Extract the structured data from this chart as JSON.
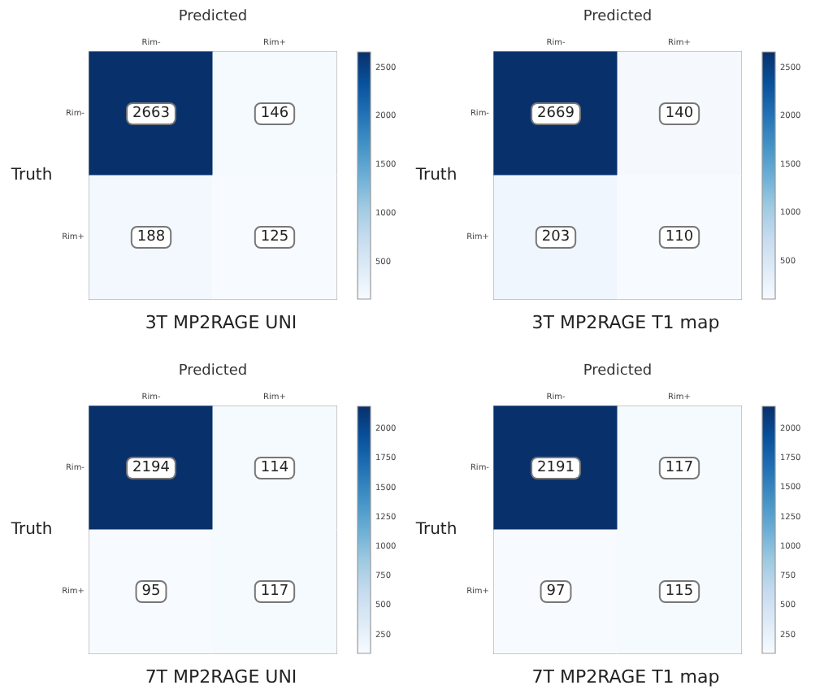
{
  "chart_data": [
    {
      "type": "heatmap",
      "title": "3T MP2RAGE UNI",
      "xlabel": "Predicted",
      "ylabel": "Truth",
      "categories": [
        "Rim-",
        "Rim+"
      ],
      "y_categories": [
        "Rim-",
        "Rim+"
      ],
      "cells": [
        [
          2663,
          146
        ],
        [
          188,
          125
        ]
      ],
      "data_labels": true,
      "clim": [
        125,
        2663
      ],
      "cticks": [
        500,
        1000,
        1500,
        2000,
        2500
      ]
    },
    {
      "type": "heatmap",
      "title": "3T MP2RAGE T1 map",
      "xlabel": "Predicted",
      "ylabel": "Truth",
      "categories": [
        "Rim-",
        "Rim+"
      ],
      "y_categories": [
        "Rim-",
        "Rim+"
      ],
      "cells": [
        [
          2669,
          140
        ],
        [
          203,
          110
        ]
      ],
      "data_labels": true,
      "clim": [
        110,
        2669
      ],
      "cticks": [
        500,
        1000,
        1500,
        2000,
        2500
      ]
    },
    {
      "type": "heatmap",
      "title": "7T MP2RAGE UNI",
      "xlabel": "Predicted",
      "ylabel": "Truth",
      "categories": [
        "Rim-",
        "Rim+"
      ],
      "y_categories": [
        "Rim-",
        "Rim+"
      ],
      "cells": [
        [
          2194,
          114
        ],
        [
          95,
          117
        ]
      ],
      "data_labels": true,
      "clim": [
        95,
        2194
      ],
      "cticks": [
        250,
        500,
        750,
        1000,
        1250,
        1500,
        1750,
        2000
      ]
    },
    {
      "type": "heatmap",
      "title": "7T MP2RAGE T1 map",
      "xlabel": "Predicted",
      "ylabel": "Truth",
      "categories": [
        "Rim-",
        "Rim+"
      ],
      "y_categories": [
        "Rim-",
        "Rim+"
      ],
      "cells": [
        [
          2191,
          117
        ],
        [
          97,
          115
        ]
      ],
      "data_labels": true,
      "clim": [
        97,
        2191
      ],
      "cticks": [
        250,
        500,
        750,
        1000,
        1250,
        1500,
        1750,
        2000
      ]
    }
  ]
}
